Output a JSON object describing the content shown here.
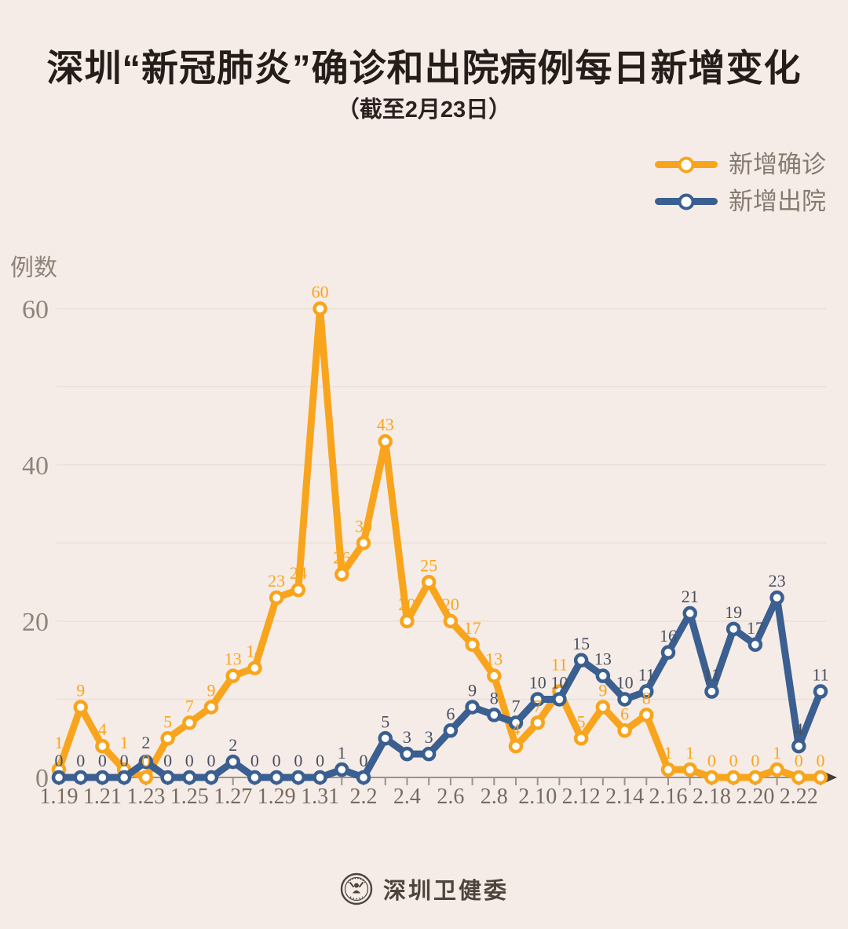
{
  "chart_data": {
    "type": "line",
    "title": "深圳“新冠肺炎”确诊和出院病例每日新增变化",
    "subtitle": "（截至2月23日）",
    "ylabel": "例数",
    "categories": [
      "1.19",
      "1.20",
      "1.21",
      "1.22",
      "1.23",
      "1.24",
      "1.25",
      "1.26",
      "1.27",
      "1.28",
      "1.29",
      "1.30",
      "1.31",
      "2.1",
      "2.2",
      "2.3",
      "2.4",
      "2.5",
      "2.6",
      "2.7",
      "2.8",
      "2.9",
      "2.10",
      "2.11",
      "2.12",
      "2.13",
      "2.14",
      "2.15",
      "2.16",
      "2.17",
      "2.18",
      "2.19",
      "2.20",
      "2.21",
      "2.22",
      "2.23"
    ],
    "x_label_step": 2,
    "series": [
      {
        "name": "新增确诊",
        "color": "#F8A51D",
        "label_color": "#F8A51D",
        "values": [
          1,
          9,
          4,
          1,
          0,
          5,
          7,
          9,
          13,
          14,
          23,
          24,
          60,
          26,
          30,
          43,
          20,
          25,
          20,
          17,
          13,
          4,
          7,
          11,
          5,
          9,
          6,
          8,
          1,
          1,
          0,
          0,
          0,
          1,
          0,
          0
        ]
      },
      {
        "name": "新增出院",
        "color": "#3A5F90",
        "label_color": "#475061",
        "values": [
          0,
          0,
          0,
          0,
          2,
          0,
          0,
          0,
          2,
          0,
          0,
          0,
          0,
          1,
          0,
          5,
          3,
          3,
          6,
          9,
          8,
          7,
          10,
          10,
          15,
          13,
          10,
          11,
          16,
          21,
          11,
          19,
          17,
          23,
          4,
          11
        ]
      }
    ],
    "ylim": [
      0,
      60
    ],
    "yticks": [
      0,
      20,
      40,
      60
    ],
    "grid_step": 10,
    "grid": true,
    "legend_position": "top-right",
    "show_point_labels": true
  },
  "footer": {
    "brand": "深圳卫健委"
  },
  "colors": {
    "background": "#F6ECE7",
    "title_text": "#241D19",
    "grid_line": "#EADFD7",
    "axis_line": "#9C9288",
    "axis_arrow": "#453C33",
    "x_tick_text": "#746B62",
    "y_tick_text": "#8E847B",
    "legend_text": "#857B71",
    "confirmed_accent": "#F8A51D",
    "discharged_accent": "#3A5F90",
    "discharged_label": "#475061",
    "footer_text": "#4D443C"
  }
}
